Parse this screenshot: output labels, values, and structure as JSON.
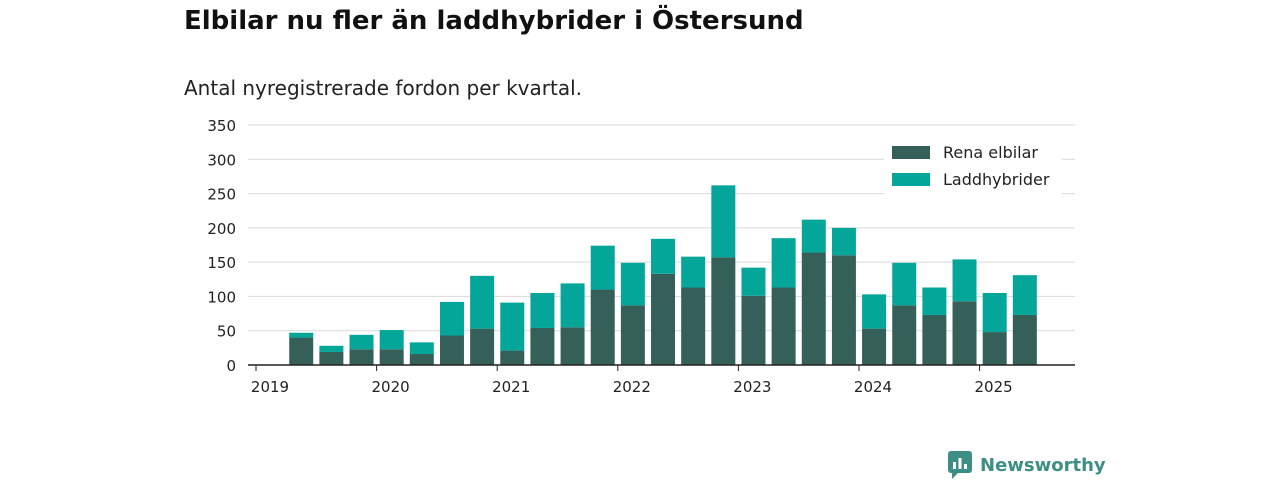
{
  "title": "Elbilar nu fler än laddhybrider i Östersund",
  "subtitle": "Antal nyregistrerade fordon per kvartal.",
  "brand": "Newsworthy",
  "colors": {
    "electric": "#346059",
    "hybrid": "#05a69a",
    "grid": "#d9d9d9",
    "axis": "#222222",
    "brand": "#3d8f86"
  },
  "chart_data": {
    "type": "bar",
    "stacked": true,
    "quarters": [
      "2019Q2",
      "2019Q3",
      "2019Q4",
      "2020Q1",
      "2020Q2",
      "2020Q3",
      "2020Q4",
      "2021Q1",
      "2021Q2",
      "2021Q3",
      "2021Q4",
      "2022Q1",
      "2022Q2",
      "2022Q3",
      "2022Q4",
      "2023Q1",
      "2023Q2",
      "2023Q3",
      "2023Q4",
      "2024Q1",
      "2024Q2",
      "2024Q3",
      "2024Q4",
      "2025Q1",
      "2025Q2"
    ],
    "series": [
      {
        "name": "Rena elbilar",
        "color": "#346059",
        "values": [
          40,
          19,
          23,
          23,
          16,
          43,
          53,
          21,
          54,
          55,
          110,
          87,
          133,
          113,
          157,
          101,
          113,
          164,
          160,
          53,
          87,
          73,
          93,
          48,
          73
        ]
      },
      {
        "name": "Laddhybrider",
        "color": "#05a69a",
        "values": [
          7,
          9,
          21,
          28,
          17,
          49,
          77,
          70,
          51,
          64,
          64,
          62,
          51,
          45,
          105,
          41,
          72,
          48,
          40,
          50,
          62,
          40,
          61,
          57,
          58
        ]
      }
    ],
    "x_ticks": [
      "2019",
      "2020",
      "2021",
      "2022",
      "2023",
      "2024",
      "2025"
    ],
    "y_ticks": [
      0,
      50,
      100,
      150,
      200,
      250,
      300,
      350
    ],
    "ylim": [
      0,
      350
    ],
    "grid": true,
    "legend_position": "top-right"
  }
}
